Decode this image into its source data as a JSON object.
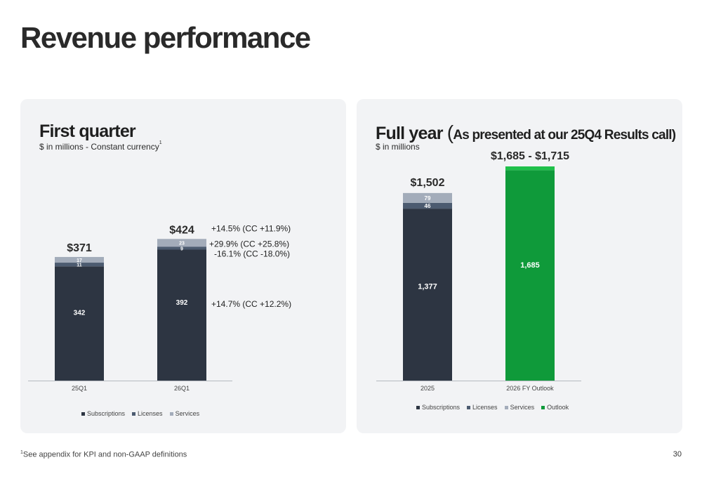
{
  "page": {
    "title": "Revenue performance",
    "footnote_mark": "1",
    "footnote": "See appendix for KPI and non-GAAP definitions",
    "page_number": "30"
  },
  "colors": {
    "subscriptions": "#2d3542",
    "licenses": "#4c5b70",
    "services": "#a3acba",
    "outlook": "#0f9a3a",
    "outlook_range": "#1fc04a",
    "panel": "#f2f3f5"
  },
  "left_panel": {
    "title": "First quarter",
    "subtitle": "$ in millions - Constant currency",
    "subtitle_mark": "1",
    "legend": [
      {
        "label": "Subscriptions",
        "color_key": "subscriptions"
      },
      {
        "label": "Licenses",
        "color_key": "licenses"
      },
      {
        "label": "Services",
        "color_key": "services"
      }
    ]
  },
  "right_panel": {
    "title_main": "Full year ",
    "title_paren_open": "(",
    "title_rest": "As presented at our 25Q4 Results call)",
    "subtitle": "$ in millions",
    "legend": [
      {
        "label": "Subscriptions",
        "color_key": "subscriptions"
      },
      {
        "label": "Licenses",
        "color_key": "licenses"
      },
      {
        "label": "Services",
        "color_key": "services"
      },
      {
        "label": "Outlook",
        "color_key": "outlook"
      }
    ]
  },
  "chart_data": [
    {
      "type": "bar",
      "stacked": true,
      "title": "First quarter",
      "categories": [
        "25Q1",
        "26Q1"
      ],
      "series": [
        {
          "name": "Subscriptions",
          "values": [
            342,
            392
          ]
        },
        {
          "name": "Licenses",
          "values": [
            11,
            9
          ]
        },
        {
          "name": "Services",
          "values": [
            17,
            23
          ]
        }
      ],
      "totals": [
        "$371",
        "$424"
      ],
      "annotations": {
        "total": "+14.5% (CC +11.9%)",
        "services": "+29.9% (CC +25.8%)",
        "licenses": "-16.1% (CC -18.0%)",
        "subscriptions": "+14.7% (CC +12.2%)"
      },
      "ylim": [
        0,
        475
      ],
      "grid": false,
      "legend_position": "bottom"
    },
    {
      "type": "bar",
      "stacked": true,
      "title": "Full year",
      "categories": [
        "2025",
        "2026 FY Outlook"
      ],
      "series": [
        {
          "name": "Subscriptions",
          "values": [
            1377,
            0
          ]
        },
        {
          "name": "Licenses",
          "values": [
            46,
            0
          ]
        },
        {
          "name": "Services",
          "values": [
            79,
            0
          ]
        },
        {
          "name": "Outlook",
          "values": [
            0,
            1685
          ]
        }
      ],
      "outlook_range": [
        1685,
        1715
      ],
      "totals": [
        "$1,502",
        "$1,685 - $1,715"
      ],
      "data_labels": {
        "subscriptions": "1,377",
        "licenses": "46",
        "services": "79",
        "outlook": "1,685"
      },
      "ylim": [
        0,
        1715
      ],
      "grid": false,
      "legend_position": "bottom"
    }
  ]
}
